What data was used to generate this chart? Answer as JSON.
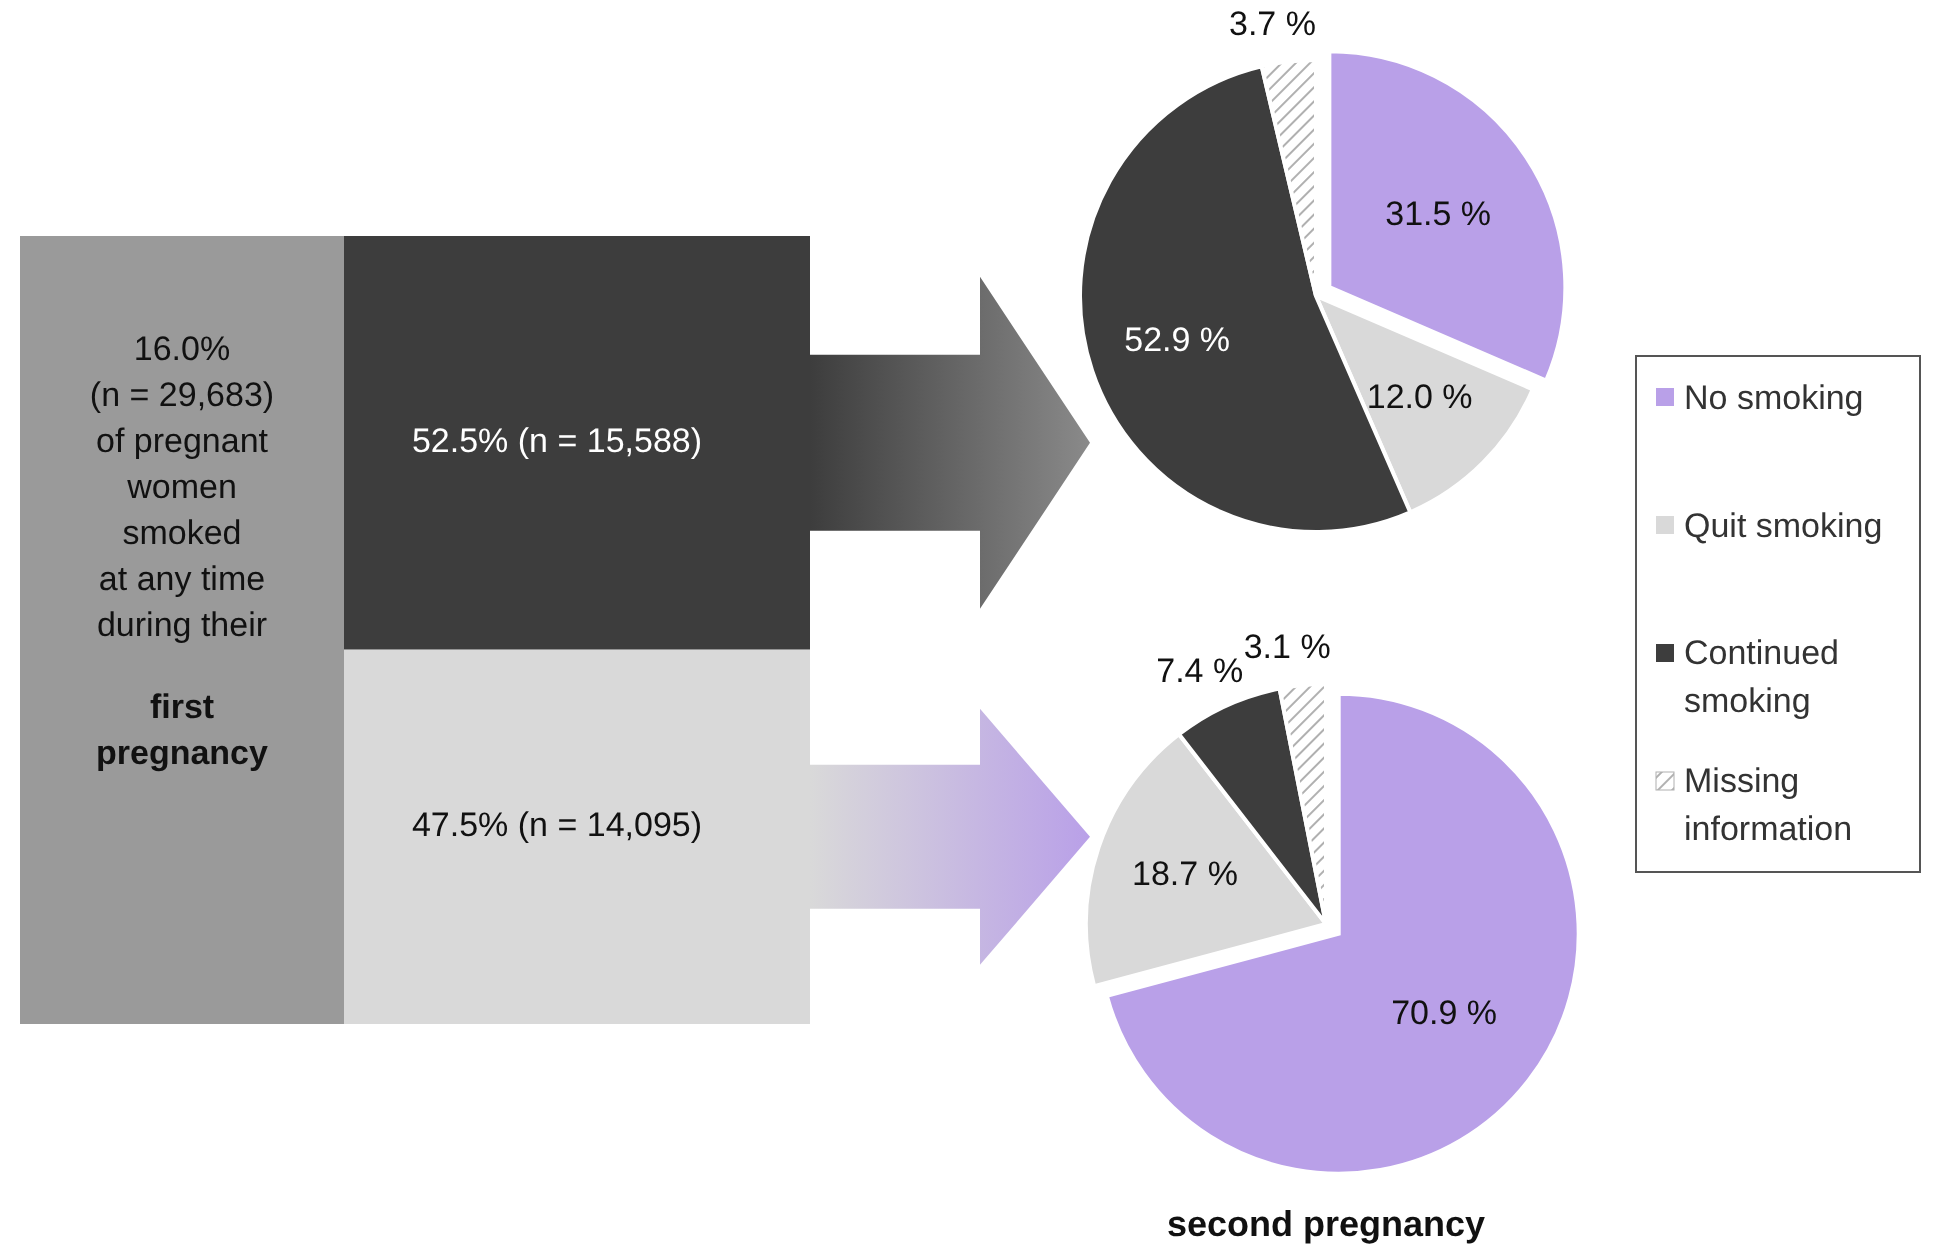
{
  "chart_data": [
    {
      "type": "other",
      "annotations": [
        "16.0%",
        "(n = 29,683)",
        "of pregnant",
        "women",
        "smoked",
        "at any time",
        "during their",
        "first pregnancy"
      ],
      "values": [
        52.5,
        47.5
      ],
      "value_labels": [
        "52.5% (n = 15,588)",
        "47.5% (n = 14,095)"
      ],
      "colors": [
        "#3d3d3d",
        "#d9d9d9"
      ]
    },
    {
      "type": "pie",
      "categories": [
        "No smoking",
        "Quit smoking",
        "Continued smoking",
        "Missing information"
      ],
      "values": [
        31.5,
        12.0,
        52.9,
        3.7
      ],
      "value_labels": [
        "31.5 %",
        "12.0 %",
        "52.9 %",
        "3.7 %"
      ],
      "colors": [
        "#b9a0e8",
        "#d9d9d9",
        "#3d3d3d",
        "#ffffff"
      ],
      "legend": "right"
    },
    {
      "type": "pie",
      "title": "second pregnancy",
      "categories": [
        null,
        null,
        null,
        null
      ],
      "values": [
        70.9,
        18.7,
        7.4,
        3.1
      ],
      "value_labels": [
        "70.9 %",
        "18.7 %",
        "7.4 %",
        "3.1 %"
      ],
      "colors": [
        "#b9a0e8",
        "#d9d9d9",
        "#3d3d3d",
        "#ffffff"
      ]
    }
  ]
}
